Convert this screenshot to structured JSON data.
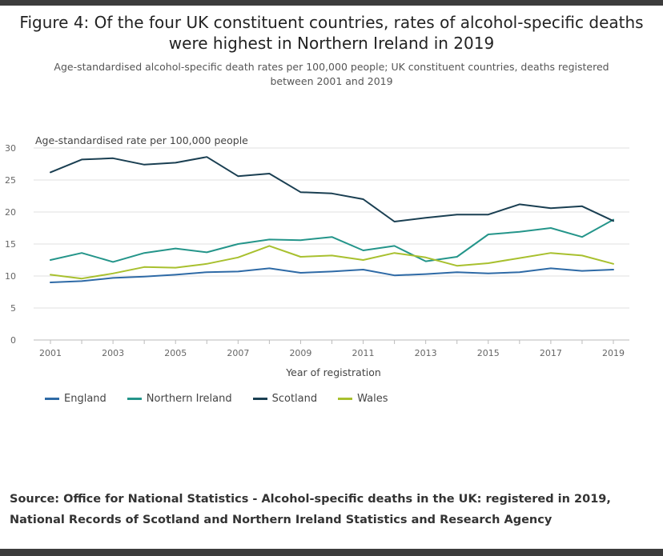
{
  "chart_data": {
    "type": "line",
    "title": "Figure 4: Of the four UK constituent countries, rates of alcohol-specific deaths were highest in Northern Ireland in 2019",
    "subtitle": "Age-standardised alcohol-specific death rates per 100,000 people; UK constituent countries, deaths registered between 2001 and 2019",
    "ylabel": "Age-standardised rate per 100,000 people",
    "xlabel": "Year of registration",
    "x": [
      2001,
      2002,
      2003,
      2004,
      2005,
      2006,
      2007,
      2008,
      2009,
      2010,
      2011,
      2012,
      2013,
      2014,
      2015,
      2016,
      2017,
      2018,
      2019
    ],
    "xticks": [
      "2001",
      "2003",
      "2005",
      "2007",
      "2009",
      "2011",
      "2013",
      "2015",
      "2017",
      "2019"
    ],
    "yticks": [
      "0",
      "5",
      "10",
      "15",
      "20",
      "25",
      "30"
    ],
    "ylim": [
      0,
      30
    ],
    "grid": true,
    "legend_position": "bottom-left",
    "series": [
      {
        "name": "England",
        "color": "#2e6aa6",
        "values": [
          9.0,
          9.2,
          9.7,
          9.9,
          10.2,
          10.6,
          10.7,
          11.2,
          10.5,
          10.7,
          11.0,
          10.1,
          10.3,
          10.6,
          10.4,
          10.6,
          11.2,
          10.8,
          11.0
        ]
      },
      {
        "name": "Northern Ireland",
        "color": "#24958a",
        "values": [
          12.5,
          13.6,
          12.2,
          13.6,
          14.3,
          13.7,
          15.0,
          15.7,
          15.6,
          16.1,
          14.0,
          14.7,
          12.3,
          13.0,
          16.5,
          16.9,
          17.5,
          16.1,
          18.8
        ]
      },
      {
        "name": "Scotland",
        "color": "#1a3f52",
        "values": [
          26.2,
          28.2,
          28.4,
          27.4,
          27.7,
          28.6,
          25.6,
          26.0,
          23.1,
          22.9,
          22.0,
          18.5,
          19.1,
          19.6,
          19.6,
          21.2,
          20.6,
          20.9,
          18.6
        ]
      },
      {
        "name": "Wales",
        "color": "#a8c02e",
        "values": [
          10.2,
          9.6,
          10.4,
          11.4,
          11.3,
          11.9,
          12.9,
          14.7,
          13.0,
          13.2,
          12.5,
          13.6,
          12.9,
          11.6,
          12.0,
          12.8,
          13.6,
          13.2,
          11.9
        ]
      }
    ]
  },
  "source": {
    "line1": "Source: Office for National Statistics - Alcohol-specific deaths in the UK: registered in 2019,",
    "line2": "National Records of Scotland and Northern Ireland Statistics and Research Agency"
  }
}
